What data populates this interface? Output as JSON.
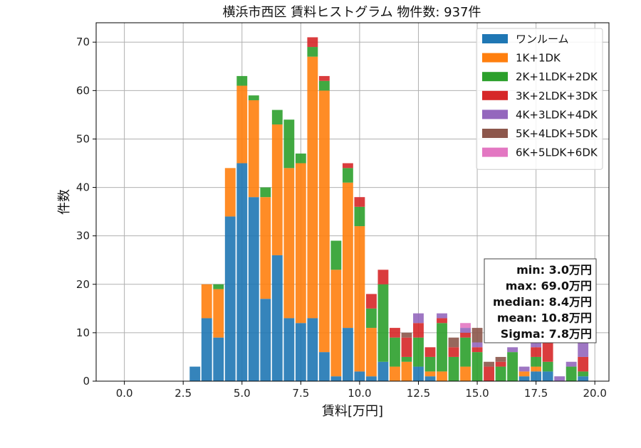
{
  "chart_data": {
    "type": "bar",
    "stacked": true,
    "title": "横浜市西区 賃料ヒストグラム  物件数: 937件",
    "xlabel": "賃料[万円]",
    "ylabel": "件数",
    "xlim": [
      -1.2,
      20.6
    ],
    "ylim": [
      0,
      74
    ],
    "x_ticks": [
      "0.0",
      "2.5",
      "5.0",
      "7.5",
      "10.0",
      "12.5",
      "15.0",
      "17.5",
      "20.0"
    ],
    "y_ticks": [
      "0",
      "10",
      "20",
      "30",
      "40",
      "50",
      "60",
      "70"
    ],
    "grid": true,
    "legend_position": "top-right",
    "bin_width": 0.5,
    "bin_starts": [
      2.75,
      3.25,
      3.75,
      4.25,
      4.75,
      5.25,
      5.75,
      6.25,
      6.75,
      7.25,
      7.75,
      8.25,
      8.75,
      9.25,
      9.75,
      10.25,
      10.75,
      11.25,
      11.75,
      12.25,
      12.75,
      13.25,
      13.75,
      14.25,
      14.75,
      15.25,
      15.75,
      16.25,
      16.75,
      17.25,
      17.75,
      18.25,
      18.75,
      19.25
    ],
    "series": [
      {
        "name": "ワンルーム",
        "color": "#1f77b4",
        "values": [
          3,
          13,
          9,
          34,
          45,
          38,
          17,
          26,
          13,
          12,
          13,
          6,
          1,
          11,
          2,
          1,
          4,
          0,
          0,
          3,
          1,
          0,
          0,
          0,
          0,
          0,
          0,
          0,
          1,
          2,
          2,
          0,
          0,
          1
        ]
      },
      {
        "name": "1K+1DK",
        "color": "#ff7f0e",
        "values": [
          0,
          7,
          10,
          10,
          16,
          20,
          21,
          27,
          31,
          33,
          54,
          54,
          22,
          30,
          30,
          10,
          0,
          3,
          4,
          0,
          1,
          2,
          0,
          3,
          0,
          0,
          0,
          0,
          1,
          1,
          0,
          0,
          0,
          0
        ]
      },
      {
        "name": "2K+1LDK+2DK",
        "color": "#2ca02c",
        "values": [
          0,
          0,
          1,
          0,
          2,
          1,
          2,
          3,
          10,
          2,
          2,
          2,
          6,
          3,
          4,
          4,
          16,
          6,
          1,
          6,
          3,
          10,
          5,
          6,
          6,
          0,
          3,
          6,
          0,
          2,
          2,
          0,
          3,
          1
        ]
      },
      {
        "name": "3K+2LDK+3DK",
        "color": "#d62728",
        "values": [
          0,
          0,
          0,
          0,
          0,
          0,
          0,
          0,
          0,
          0,
          2,
          1,
          0,
          1,
          2,
          3,
          3,
          2,
          4,
          3,
          2,
          1,
          2,
          1,
          1,
          3,
          1,
          0,
          0,
          2,
          4,
          0,
          0,
          3
        ]
      },
      {
        "name": "4K+3LDK+4DK",
        "color": "#9467bd",
        "values": [
          0,
          0,
          0,
          0,
          0,
          0,
          0,
          0,
          0,
          0,
          0,
          0,
          0,
          0,
          0,
          0,
          0,
          0,
          0,
          2,
          0,
          1,
          0,
          1,
          1,
          0,
          0,
          1,
          1,
          1,
          0,
          1,
          1,
          3
        ]
      },
      {
        "name": "5K+4LDK+5DK",
        "color": "#8c564b",
        "values": [
          0,
          0,
          0,
          0,
          0,
          0,
          0,
          0,
          0,
          0,
          0,
          0,
          0,
          0,
          0,
          0,
          0,
          0,
          1,
          0,
          0,
          0,
          2,
          0,
          3,
          1,
          1,
          0,
          0,
          0,
          0,
          0,
          0,
          0
        ]
      },
      {
        "name": "6K+5LDK+6DK",
        "color": "#e377c2",
        "values": [
          0,
          0,
          0,
          0,
          0,
          0,
          0,
          0,
          0,
          0,
          0,
          0,
          0,
          0,
          0,
          0,
          0,
          0,
          0,
          0,
          0,
          0,
          0,
          1,
          0,
          0,
          0,
          0,
          0,
          0,
          0,
          0,
          0,
          0
        ]
      }
    ],
    "stats": [
      "min: 3.0万円",
      "max: 69.0万円",
      "median: 8.4万円",
      "mean: 10.8万円",
      "Sigma: 7.8万円"
    ]
  }
}
